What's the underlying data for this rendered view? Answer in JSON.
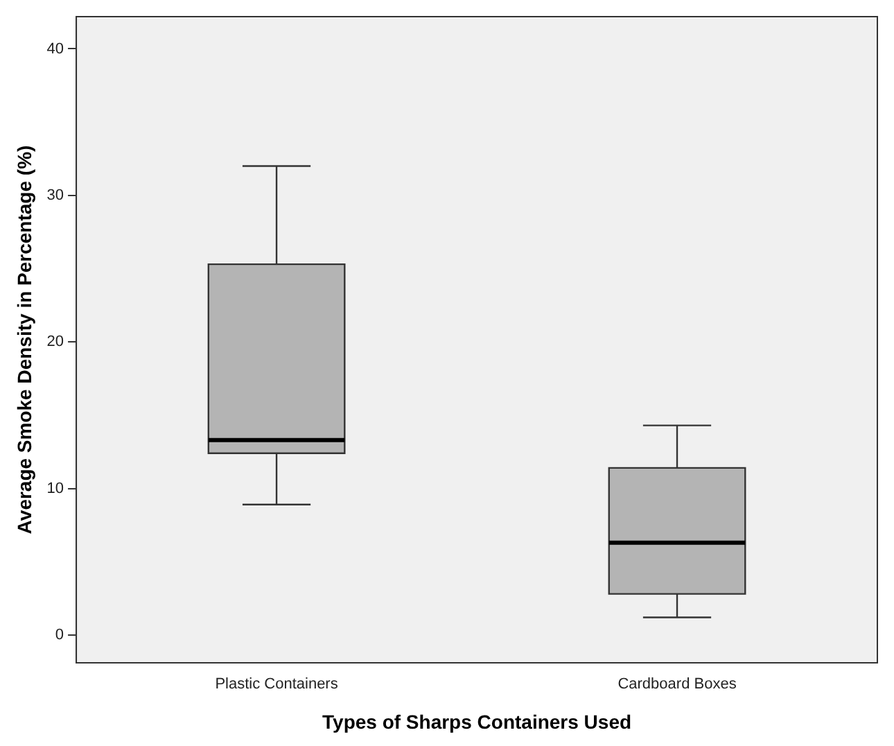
{
  "chart_data": {
    "type": "box",
    "xlabel": "Types of Sharps Containers Used",
    "ylabel": "Average Smoke Density in Percentage (%)",
    "categories": [
      "Plastic Containers",
      "Cardboard Boxes"
    ],
    "boxes": [
      {
        "low": 8.9,
        "q1": 12.4,
        "median": 13.3,
        "q3": 25.3,
        "high": 32.0
      },
      {
        "low": 1.2,
        "q1": 2.8,
        "median": 6.3,
        "q3": 11.4,
        "high": 14.3
      }
    ],
    "color": "#b4b4b4",
    "ylim": [
      -1.9,
      42.2
    ],
    "yticks": [
      0,
      10,
      20,
      30,
      40
    ],
    "grid": false,
    "legend": false
  }
}
